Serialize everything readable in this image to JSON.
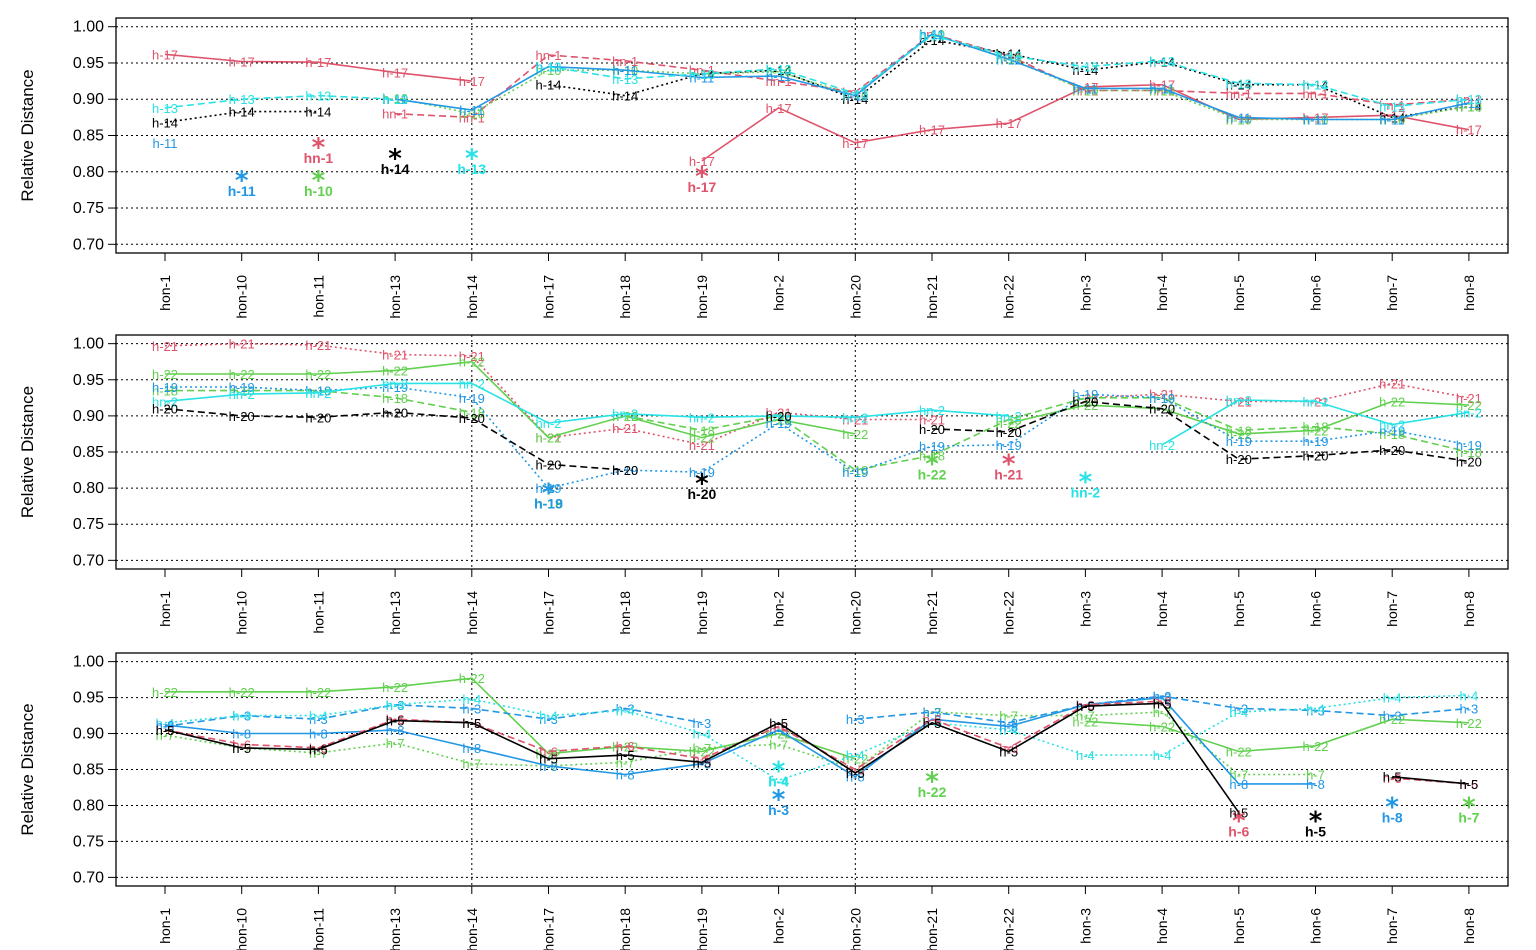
{
  "chart_data": [
    {
      "type": "line",
      "ylabel": "Relative Distance",
      "ylim": [
        0.7,
        1.0
      ],
      "yticks": [
        "0.70",
        "0.75",
        "0.80",
        "0.85",
        "0.90",
        "0.95",
        "1.00"
      ],
      "grid": true,
      "categories": [
        "hon-1",
        "hon-10",
        "hon-11",
        "hon-13",
        "hon-14",
        "hon-17",
        "hon-18",
        "hon-19",
        "hon-2",
        "hon-20",
        "hon-21",
        "hon-22",
        "hon-3",
        "hon-4",
        "hon-5",
        "hon-6",
        "hon-7",
        "hon-8"
      ],
      "series": [
        {
          "name": "h-17",
          "color": "#DF536B",
          "dash": "solid",
          "values": [
            0.962,
            0.952,
            0.951,
            0.937,
            0.925,
            null,
            null,
            0.815,
            0.888,
            0.84,
            0.858,
            0.867,
            0.917,
            0.92,
            0.872,
            0.875,
            0.878,
            0.858
          ],
          "min": {
            "cat": "hon-19",
            "value": 0.805,
            "label": "h-17"
          }
        },
        {
          "name": "hn-1",
          "color": "#DF536B",
          "dash": "dashed",
          "values": [
            null,
            null,
            null,
            0.88,
            0.875,
            0.961,
            0.953,
            0.94,
            0.925,
            0.91,
            0.99,
            0.96,
            0.912,
            0.912,
            0.908,
            0.908,
            0.892,
            0.9
          ],
          "min": {
            "cat": "hon-11",
            "value": 0.845,
            "label": "hn-1"
          }
        },
        {
          "name": "h-14",
          "color": "#000000",
          "dash": "dotted",
          "values": [
            0.868,
            0.883,
            0.883,
            null,
            null,
            0.92,
            0.905,
            0.935,
            0.94,
            0.9,
            0.982,
            0.963,
            0.94,
            0.952,
            0.92,
            0.92,
            0.875,
            0.89
          ],
          "min": {
            "cat": "hon-13",
            "value": 0.83,
            "label": "h-14"
          }
        },
        {
          "name": "h-10",
          "color": "#61D04F",
          "dash": "dotted",
          "values": [
            null,
            null,
            null,
            0.902,
            0.88,
            0.94,
            0.94,
            0.935,
            0.938,
            0.905,
            0.99,
            0.956,
            0.912,
            0.912,
            0.872,
            0.872,
            0.872,
            0.89
          ],
          "min": {
            "cat": "hon-11",
            "value": 0.8,
            "label": "h-10"
          }
        },
        {
          "name": "h-11",
          "color": "#2297E6",
          "dash": "solid",
          "values": [
            0.84,
            null,
            null,
            0.9,
            0.885,
            0.945,
            0.94,
            0.93,
            0.932,
            0.905,
            0.99,
            0.955,
            0.915,
            0.915,
            0.875,
            0.872,
            0.872,
            0.895
          ],
          "min": {
            "cat": "hon-10",
            "value": 0.8,
            "label": "h-11"
          }
        },
        {
          "name": "h-13",
          "color": "#28E2E5",
          "dash": "dashed",
          "values": [
            0.888,
            0.9,
            0.905,
            0.9,
            null,
            0.945,
            0.928,
            0.935,
            0.942,
            0.908,
            0.988,
            0.96,
            0.945,
            0.953,
            0.922,
            0.92,
            0.89,
            0.9
          ],
          "min": {
            "cat": "hon-14",
            "value": 0.83,
            "label": "h-13"
          }
        }
      ]
    },
    {
      "type": "line",
      "ylabel": "Relative Distance",
      "ylim": [
        0.7,
        1.0
      ],
      "yticks": [
        "0.70",
        "0.75",
        "0.80",
        "0.85",
        "0.90",
        "0.95",
        "1.00"
      ],
      "grid": true,
      "categories": [
        "hon-1",
        "hon-10",
        "hon-11",
        "hon-13",
        "hon-14",
        "hon-17",
        "hon-18",
        "hon-19",
        "hon-2",
        "hon-20",
        "hon-21",
        "hon-22",
        "hon-3",
        "hon-4",
        "hon-5",
        "hon-6",
        "hon-7",
        "hon-8"
      ],
      "series": [
        {
          "name": "h-21",
          "color": "#DF536B",
          "dash": "dotted",
          "values": [
            0.997,
            1.0,
            0.998,
            0.985,
            0.983,
            0.87,
            0.883,
            0.86,
            0.905,
            0.895,
            0.895,
            null,
            0.925,
            0.93,
            0.92,
            0.92,
            0.945,
            0.925
          ],
          "min": {
            "cat": "hon-22",
            "value": 0.845,
            "label": "h-21"
          }
        },
        {
          "name": "h-22",
          "color": "#61D04F",
          "dash": "solid",
          "values": [
            0.958,
            0.958,
            0.958,
            0.963,
            0.975,
            0.87,
            0.9,
            0.87,
            0.895,
            0.875,
            null,
            0.89,
            0.915,
            0.91,
            0.875,
            0.88,
            0.92,
            0.915
          ],
          "min": {
            "cat": "hon-21",
            "value": 0.845,
            "label": "h-22"
          }
        },
        {
          "name": "h-18",
          "color": "#61D04F",
          "dash": "dashed",
          "values": [
            0.935,
            0.935,
            0.935,
            0.925,
            0.905,
            null,
            0.9,
            0.88,
            0.9,
            0.825,
            0.845,
            0.895,
            0.925,
            0.925,
            0.88,
            0.885,
            0.875,
            0.85
          ],
          "min": {
            "cat": "hon-17",
            "value": 0.805,
            "label": "h-18"
          }
        },
        {
          "name": "h-19",
          "color": "#2297E6",
          "dash": "dotted",
          "values": [
            0.94,
            0.94,
            0.935,
            0.94,
            0.925,
            0.8,
            0.825,
            0.822,
            0.89,
            0.822,
            0.858,
            0.86,
            0.93,
            0.925,
            0.865,
            0.865,
            0.88,
            0.86
          ],
          "min": {
            "cat": "hon-17",
            "value": 0.805,
            "label": "h-19"
          }
        },
        {
          "name": "hn-2",
          "color": "#28E2E5",
          "dash": "solid",
          "values": [
            0.92,
            0.93,
            0.932,
            0.945,
            0.945,
            0.89,
            0.903,
            0.898,
            0.9,
            0.898,
            0.908,
            0.9,
            null,
            0.86,
            0.922,
            0.92,
            0.888,
            0.905
          ],
          "min": {
            "cat": "hon-3",
            "value": 0.82,
            "label": "hn-2"
          }
        },
        {
          "name": "h-20",
          "color": "#000000",
          "dash": "dashed",
          "values": [
            0.91,
            0.9,
            0.898,
            0.905,
            0.897,
            0.833,
            0.825,
            null,
            0.9,
            null,
            0.882,
            0.878,
            0.92,
            0.91,
            0.84,
            0.845,
            0.853,
            0.837
          ],
          "min": {
            "cat": "hon-19",
            "value": 0.818,
            "label": "h-20"
          }
        }
      ]
    },
    {
      "type": "line",
      "ylabel": "Relative Distance",
      "ylim": [
        0.7,
        1.0
      ],
      "yticks": [
        "0.70",
        "0.75",
        "0.80",
        "0.85",
        "0.90",
        "0.95",
        "1.00"
      ],
      "grid": true,
      "categories": [
        "hon-1",
        "hon-10",
        "hon-11",
        "hon-13",
        "hon-14",
        "hon-17",
        "hon-18",
        "hon-19",
        "hon-2",
        "hon-20",
        "hon-21",
        "hon-22",
        "hon-3",
        "hon-4",
        "hon-5",
        "hon-6",
        "hon-7",
        "hon-8"
      ],
      "series": [
        {
          "name": "h-22",
          "color": "#61D04F",
          "dash": "solid",
          "values": [
            0.958,
            0.958,
            0.958,
            0.965,
            0.977,
            0.872,
            0.882,
            0.875,
            0.9,
            0.865,
            null,
            null,
            0.917,
            0.91,
            0.875,
            0.883,
            0.92,
            0.915
          ],
          "min": {
            "cat": "hon-21",
            "value": 0.845,
            "label": "h-22"
          }
        },
        {
          "name": "h-7",
          "color": "#61D04F",
          "dash": "dotted",
          "values": [
            0.898,
            0.88,
            0.873,
            0.887,
            0.858,
            0.855,
            0.86,
            0.88,
            0.885,
            0.85,
            0.93,
            0.925,
            0.925,
            0.93,
            0.843,
            0.843,
            null,
            null
          ],
          "min": {
            "cat": "hon-8",
            "value": 0.81,
            "label": "h-7"
          }
        },
        {
          "name": "h-3",
          "color": "#2297E6",
          "dash": "dashed",
          "values": [
            0.91,
            0.925,
            0.92,
            0.94,
            0.935,
            0.92,
            0.935,
            0.915,
            null,
            0.92,
            0.93,
            0.915,
            0.94,
            0.952,
            0.935,
            0.932,
            0.925,
            0.935
          ],
          "min": {
            "cat": "hon-2",
            "value": 0.82,
            "label": "h-3"
          }
        },
        {
          "name": "h-4",
          "color": "#28E2E5",
          "dash": "dotted",
          "values": [
            0.915,
            0.925,
            0.925,
            0.94,
            0.948,
            0.925,
            0.932,
            0.9,
            0.835,
            0.87,
            0.915,
            0.905,
            0.87,
            0.87,
            0.93,
            0.935,
            0.95,
            0.953
          ],
          "min": {
            "cat": "hon-2",
            "value": 0.86,
            "label": "h-4"
          }
        },
        {
          "name": "h-8",
          "color": "#2297E6",
          "dash": "solid",
          "values": [
            0.912,
            0.9,
            0.9,
            0.905,
            0.88,
            0.855,
            0.843,
            0.858,
            0.905,
            0.84,
            0.92,
            0.91,
            0.94,
            0.95,
            0.83,
            0.83,
            null,
            null
          ],
          "min": {
            "cat": "hon-7",
            "value": 0.81,
            "label": "h-8"
          }
        },
        {
          "name": "h-6",
          "color": "#DF536B",
          "dash": "dashed",
          "values": [
            0.905,
            0.885,
            0.88,
            0.92,
            0.915,
            0.875,
            0.883,
            0.865,
            0.91,
            0.85,
            0.92,
            0.88,
            0.94,
            0.945,
            null,
            null,
            0.838,
            0.83
          ],
          "min": {
            "cat": "hon-5",
            "value": 0.79,
            "label": "h-6"
          }
        },
        {
          "name": "h-5",
          "color": "#000000",
          "dash": "solid",
          "values": [
            0.905,
            0.88,
            0.878,
            0.918,
            0.915,
            0.865,
            0.87,
            0.86,
            0.915,
            0.845,
            0.915,
            0.875,
            0.938,
            0.942,
            0.79,
            null,
            0.84,
            0.83
          ],
          "min": {
            "cat": "hon-6",
            "value": 0.79,
            "label": "h-5"
          }
        }
      ]
    }
  ]
}
